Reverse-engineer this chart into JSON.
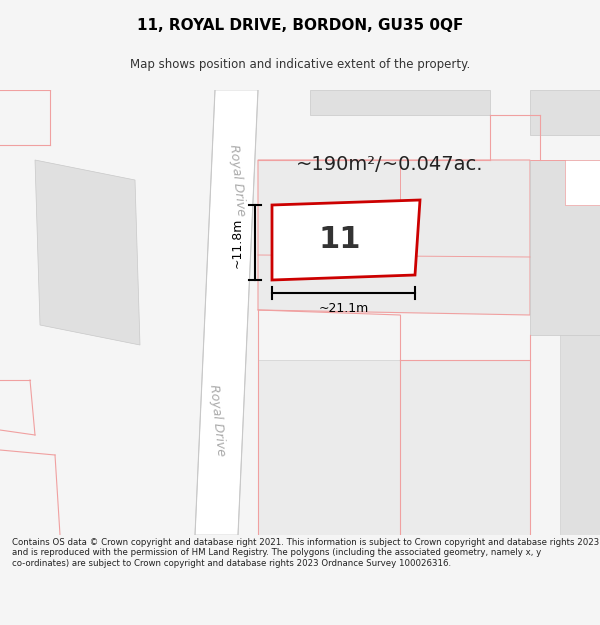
{
  "title": "11, ROYAL DRIVE, BORDON, GU35 0QF",
  "subtitle": "Map shows position and indicative extent of the property.",
  "area_text": "~190m²/~0.047ac.",
  "plot_number": "11",
  "dim_width": "~21.1m",
  "dim_height": "~11.8m",
  "road_label_top": "Royal Drive",
  "road_label_bottom": "Royal Drive",
  "footer": "Contains OS data © Crown copyright and database right 2021. This information is subject to Crown copyright and database rights 2023 and is reproduced with the permission of HM Land Registry. The polygons (including the associated geometry, namely x, y co-ordinates) are subject to Crown copyright and database rights 2023 Ordnance Survey 100026316.",
  "bg_color": "#f5f5f5",
  "map_bg": "#ffffff",
  "building_fill": "#e0e0e0",
  "road_fill": "#ffffff",
  "plot_fill": "#ffffff",
  "plot_edge": "#cc0000",
  "property_line": "#f0a0a0",
  "road_edge": "#c8c8c8",
  "text_color": "#222222",
  "road_text_color": "#aaaaaa"
}
